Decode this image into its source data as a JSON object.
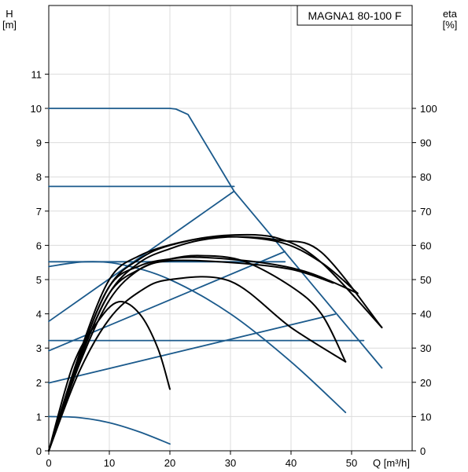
{
  "chart_data": {
    "type": "line",
    "title": "MAGNA1 80-100 F",
    "xlabel": "Q [m³/h]",
    "ylabel_left": [
      "H",
      "[m]"
    ],
    "ylabel_right": [
      "eta",
      "[%]"
    ],
    "xlim": [
      0,
      60
    ],
    "ylim_left": [
      0,
      12
    ],
    "ylim_right": [
      0,
      120
    ],
    "x_ticks": [
      "0",
      "10",
      "20",
      "30",
      "40",
      "50"
    ],
    "y_left_ticks": [
      "0",
      "1",
      "2",
      "3",
      "4",
      "5",
      "6",
      "7",
      "8",
      "9",
      "10",
      "11"
    ],
    "y_right_ticks": [
      "0",
      "10",
      "20",
      "30",
      "40",
      "50",
      "60",
      "70",
      "80",
      "90",
      "100"
    ],
    "grid": true,
    "colors": {
      "head": "#1b5a8c",
      "efficiency": "#000000",
      "grid": "#dcdcdc"
    },
    "series": [
      {
        "kind": "head",
        "points": [
          [
            0,
            10
          ],
          [
            20,
            10
          ],
          [
            21,
            9.98
          ],
          [
            23,
            9.82
          ],
          [
            30.6,
            7.58
          ],
          [
            55,
            2.42
          ]
        ]
      },
      {
        "kind": "head",
        "points": [
          [
            0,
            7.72
          ],
          [
            30.6,
            7.72
          ]
        ]
      },
      {
        "kind": "head",
        "points": [
          [
            0,
            5.52
          ],
          [
            39,
            5.52
          ]
        ]
      },
      {
        "kind": "head",
        "points": [
          [
            0,
            3.22
          ],
          [
            52,
            3.22
          ]
        ]
      },
      {
        "kind": "head",
        "points": [
          [
            0,
            3.78
          ],
          [
            30.6,
            7.58
          ]
        ]
      },
      {
        "kind": "head",
        "points": [
          [
            0,
            2.92
          ],
          [
            39,
            5.82
          ]
        ]
      },
      {
        "kind": "head",
        "points": [
          [
            0,
            1.98
          ],
          [
            47.3,
            3.99
          ]
        ]
      },
      {
        "kind": "head",
        "points": [
          [
            0,
            5.38
          ],
          [
            6,
            5.52
          ],
          [
            12,
            5.44
          ],
          [
            20,
            5.0
          ],
          [
            30,
            4.0
          ],
          [
            40,
            2.6
          ],
          [
            49,
            1.12
          ]
        ]
      },
      {
        "kind": "head",
        "points": [
          [
            0,
            1.0
          ],
          [
            5,
            0.97
          ],
          [
            10,
            0.82
          ],
          [
            15,
            0.55
          ],
          [
            20,
            0.2
          ]
        ]
      },
      {
        "kind": "efficiency",
        "points": [
          [
            0,
            0
          ],
          [
            5,
            23
          ],
          [
            10,
            38.5
          ],
          [
            15,
            46.5
          ],
          [
            20,
            50
          ],
          [
            30,
            49.5
          ],
          [
            40,
            36
          ],
          [
            49,
            26
          ]
        ]
      },
      {
        "kind": "efficiency",
        "points": [
          [
            0,
            0
          ],
          [
            5,
            25
          ],
          [
            10,
            44
          ],
          [
            15,
            53
          ],
          [
            20,
            56
          ],
          [
            25,
            57
          ],
          [
            32,
            55.5
          ],
          [
            40,
            48
          ],
          [
            45,
            40
          ],
          [
            49,
            26
          ]
        ]
      },
      {
        "kind": "efficiency",
        "points": [
          [
            0,
            0
          ],
          [
            5,
            26
          ],
          [
            10,
            46
          ],
          [
            15,
            55
          ],
          [
            20,
            59
          ],
          [
            25,
            61.5
          ],
          [
            31,
            62.5
          ],
          [
            38,
            61.5
          ],
          [
            45,
            58
          ],
          [
            55,
            36
          ]
        ]
      },
      {
        "kind": "efficiency",
        "points": [
          [
            0,
            0
          ],
          [
            5,
            27
          ],
          [
            10,
            48
          ],
          [
            15,
            56
          ],
          [
            20,
            60
          ],
          [
            28,
            62.5
          ],
          [
            38,
            61
          ],
          [
            45,
            55
          ],
          [
            51,
            46
          ]
        ]
      },
      {
        "kind": "efficiency",
        "points": [
          [
            0,
            0
          ],
          [
            5,
            28
          ],
          [
            10,
            50
          ],
          [
            15,
            57
          ],
          [
            22,
            61
          ],
          [
            30,
            63
          ],
          [
            38,
            62
          ],
          [
            45,
            55
          ],
          [
            55,
            36
          ]
        ]
      },
      {
        "kind": "efficiency",
        "points": [
          [
            0,
            0
          ],
          [
            5,
            27
          ],
          [
            10,
            48
          ],
          [
            15,
            54
          ],
          [
            20,
            56
          ],
          [
            25,
            56.5
          ],
          [
            35,
            55
          ],
          [
            43,
            52
          ],
          [
            51,
            46
          ]
        ]
      },
      {
        "kind": "efficiency",
        "points": [
          [
            0,
            0
          ],
          [
            5,
            26
          ],
          [
            10,
            46
          ],
          [
            15,
            53
          ],
          [
            20,
            55.5
          ],
          [
            30,
            55
          ],
          [
            40,
            53
          ],
          [
            47,
            49
          ]
        ]
      },
      {
        "kind": "efficiency",
        "points": [
          [
            0,
            0
          ],
          [
            4,
            25
          ],
          [
            8,
            37.5
          ],
          [
            11.5,
            43.5
          ],
          [
            15,
            40
          ],
          [
            18,
            30
          ],
          [
            20,
            18
          ]
        ]
      }
    ]
  }
}
